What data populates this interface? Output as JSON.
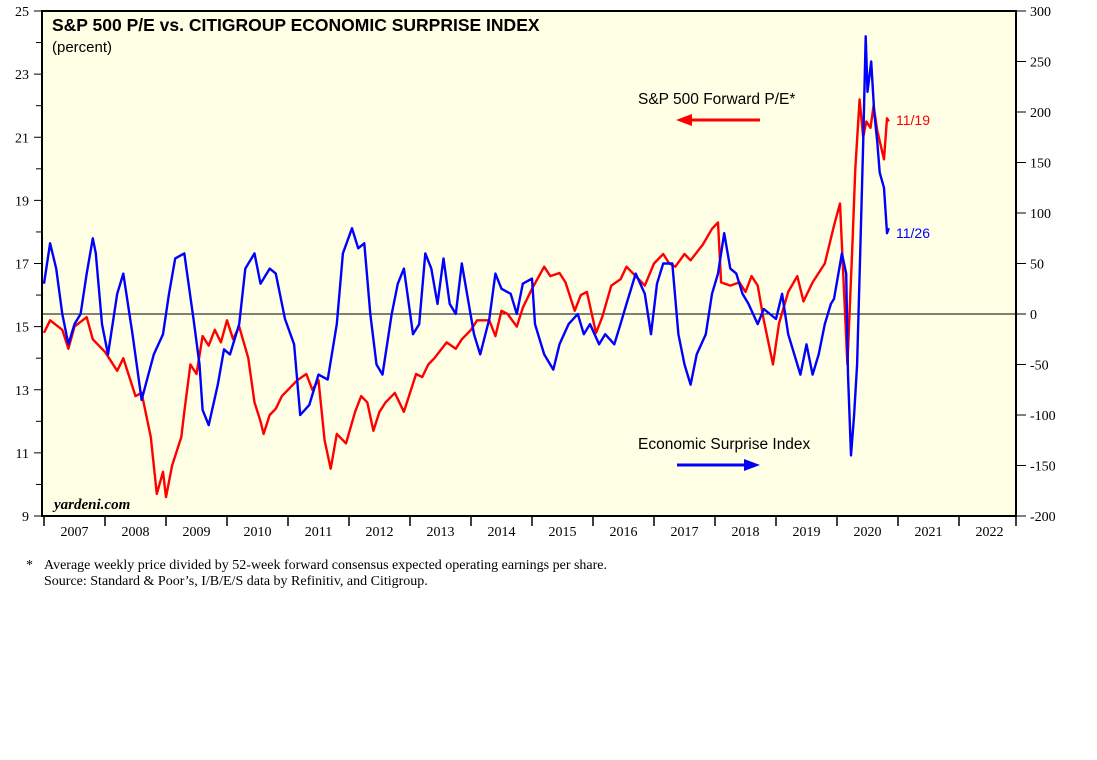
{
  "chart_data": {
    "type": "line",
    "title": "S&P 500 P/E vs. CITIGROUP ECONOMIC SURPRISE INDEX",
    "subtitle": "(percent)",
    "watermark": "yardeni.com",
    "x_tick_labels": [
      "2007",
      "2008",
      "2009",
      "2010",
      "2011",
      "2012",
      "2013",
      "2014",
      "2015",
      "2016",
      "2017",
      "2018",
      "2019",
      "2020",
      "2021",
      "2022"
    ],
    "xlim": [
      2007,
      2023
    ],
    "left_axis": {
      "ylim": [
        9,
        25
      ],
      "ticks": [
        9,
        11,
        13,
        15,
        17,
        19,
        21,
        23,
        25
      ]
    },
    "right_axis": {
      "ylim": [
        -200,
        300
      ],
      "ticks": [
        -200,
        -150,
        -100,
        -50,
        0,
        50,
        100,
        150,
        200,
        250,
        300
      ]
    },
    "reference_line": {
      "axis": "right",
      "value": 0
    },
    "series": [
      {
        "name": "S&P 500 Forward P/E*",
        "axis": "left",
        "color": "#ff0000",
        "end_label": "11/19",
        "x": [
          2007.0,
          2007.1,
          2007.3,
          2007.4,
          2007.5,
          2007.7,
          2007.8,
          2008.0,
          2008.2,
          2008.3,
          2008.5,
          2008.6,
          2008.75,
          2008.85,
          2008.95,
          2009.0,
          2009.1,
          2009.25,
          2009.3,
          2009.4,
          2009.5,
          2009.6,
          2009.7,
          2009.8,
          2009.9,
          2010.0,
          2010.1,
          2010.2,
          2010.35,
          2010.45,
          2010.55,
          2010.6,
          2010.7,
          2010.8,
          2010.9,
          2011.0,
          2011.15,
          2011.3,
          2011.4,
          2011.5,
          2011.6,
          2011.7,
          2011.8,
          2011.95,
          2012.1,
          2012.2,
          2012.3,
          2012.4,
          2012.5,
          2012.6,
          2012.75,
          2012.9,
          2013.0,
          2013.1,
          2013.2,
          2013.3,
          2013.4,
          2013.6,
          2013.75,
          2013.85,
          2014.0,
          2014.1,
          2014.3,
          2014.4,
          2014.5,
          2014.6,
          2014.75,
          2014.85,
          2015.0,
          2015.2,
          2015.3,
          2015.45,
          2015.55,
          2015.7,
          2015.8,
          2015.9,
          2016.05,
          2016.15,
          2016.3,
          2016.45,
          2016.55,
          2016.7,
          2016.85,
          2017.0,
          2017.15,
          2017.25,
          2017.35,
          2017.5,
          2017.6,
          2017.8,
          2017.95,
          2018.05,
          2018.1,
          2018.25,
          2018.4,
          2018.5,
          2018.6,
          2018.7,
          2018.8,
          2018.95,
          2019.05,
          2019.2,
          2019.35,
          2019.45,
          2019.6,
          2019.8,
          2019.95,
          2020.05,
          2020.17,
          2020.25,
          2020.3,
          2020.37,
          2020.43,
          2020.48,
          2020.55,
          2020.6,
          2020.66,
          2020.77,
          2020.82,
          2020.85
        ],
        "y": [
          14.8,
          15.2,
          14.9,
          14.3,
          15.0,
          15.3,
          14.6,
          14.2,
          13.6,
          14.0,
          12.8,
          12.9,
          11.5,
          9.7,
          10.4,
          9.6,
          10.6,
          11.5,
          12.3,
          13.8,
          13.5,
          14.7,
          14.4,
          14.9,
          14.5,
          15.2,
          14.6,
          15.0,
          14.0,
          12.6,
          12.0,
          11.6,
          12.2,
          12.4,
          12.8,
          13.0,
          13.3,
          13.5,
          13.0,
          13.3,
          11.4,
          10.5,
          11.6,
          11.3,
          12.3,
          12.8,
          12.6,
          11.7,
          12.3,
          12.6,
          12.9,
          12.3,
          12.9,
          13.5,
          13.4,
          13.8,
          14.0,
          14.5,
          14.3,
          14.6,
          14.9,
          15.2,
          15.2,
          14.7,
          15.5,
          15.4,
          15.0,
          15.6,
          16.2,
          16.9,
          16.6,
          16.7,
          16.4,
          15.5,
          16.0,
          16.1,
          14.8,
          15.3,
          16.3,
          16.5,
          16.9,
          16.6,
          16.3,
          17.0,
          17.3,
          17.0,
          16.9,
          17.3,
          17.1,
          17.6,
          18.1,
          18.3,
          16.4,
          16.3,
          16.4,
          16.1,
          16.6,
          16.3,
          15.2,
          13.8,
          15.1,
          16.1,
          16.6,
          15.8,
          16.4,
          17.0,
          18.2,
          18.9,
          13.8,
          17.5,
          20.0,
          22.2,
          21.0,
          21.5,
          21.3,
          22.0,
          21.2,
          20.3,
          21.6,
          21.5
        ]
      },
      {
        "name": "Economic Surprise Index",
        "axis": "right",
        "color": "#0000ff",
        "end_label": "11/26",
        "x": [
          2007.0,
          2007.1,
          2007.2,
          2007.3,
          2007.4,
          2007.5,
          2007.6,
          2007.7,
          2007.8,
          2007.85,
          2007.95,
          2008.05,
          2008.2,
          2008.3,
          2008.45,
          2008.6,
          2008.8,
          2008.95,
          2009.05,
          2009.15,
          2009.3,
          2009.45,
          2009.55,
          2009.6,
          2009.7,
          2009.85,
          2009.95,
          2010.05,
          2010.2,
          2010.3,
          2010.45,
          2010.55,
          2010.7,
          2010.8,
          2010.95,
          2011.1,
          2011.2,
          2011.35,
          2011.5,
          2011.65,
          2011.8,
          2011.9,
          2012.05,
          2012.15,
          2012.25,
          2012.35,
          2012.45,
          2012.55,
          2012.7,
          2012.8,
          2012.9,
          2013.05,
          2013.15,
          2013.25,
          2013.35,
          2013.45,
          2013.55,
          2013.65,
          2013.75,
          2013.85,
          2014.05,
          2014.15,
          2014.3,
          2014.4,
          2014.5,
          2014.65,
          2014.75,
          2014.85,
          2015.0,
          2015.05,
          2015.2,
          2015.35,
          2015.45,
          2015.6,
          2015.75,
          2015.85,
          2015.95,
          2016.1,
          2016.2,
          2016.35,
          2016.45,
          2016.55,
          2016.7,
          2016.85,
          2016.95,
          2017.05,
          2017.15,
          2017.3,
          2017.4,
          2017.5,
          2017.6,
          2017.7,
          2017.85,
          2017.95,
          2018.05,
          2018.15,
          2018.25,
          2018.35,
          2018.45,
          2018.55,
          2018.7,
          2018.8,
          2018.9,
          2019.0,
          2019.1,
          2019.2,
          2019.3,
          2019.4,
          2019.5,
          2019.6,
          2019.7,
          2019.8,
          2019.9,
          2019.95,
          2020.08,
          2020.15,
          2020.18,
          2020.23,
          2020.28,
          2020.33,
          2020.38,
          2020.43,
          2020.47,
          2020.5,
          2020.56,
          2020.61,
          2020.66,
          2020.7,
          2020.77,
          2020.82,
          2020.85
        ],
        "y": [
          30,
          70,
          45,
          0,
          -30,
          -10,
          0,
          40,
          75,
          60,
          -10,
          -40,
          20,
          40,
          -20,
          -85,
          -40,
          -20,
          20,
          55,
          60,
          -5,
          -50,
          -95,
          -110,
          -70,
          -35,
          -40,
          -10,
          45,
          60,
          30,
          45,
          40,
          -5,
          -30,
          -100,
          -90,
          -60,
          -65,
          -10,
          60,
          85,
          65,
          70,
          0,
          -50,
          -60,
          0,
          30,
          45,
          -20,
          -10,
          60,
          45,
          10,
          55,
          10,
          0,
          50,
          -20,
          -40,
          -5,
          40,
          25,
          20,
          0,
          30,
          35,
          -10,
          -40,
          -55,
          -30,
          -10,
          0,
          -20,
          -10,
          -30,
          -20,
          -30,
          -10,
          10,
          40,
          20,
          -20,
          30,
          50,
          50,
          -20,
          -50,
          -70,
          -40,
          -20,
          20,
          40,
          80,
          45,
          40,
          20,
          10,
          -10,
          5,
          0,
          -5,
          20,
          -20,
          -40,
          -60,
          -30,
          -60,
          -40,
          -10,
          10,
          15,
          60,
          40,
          -60,
          -140,
          -100,
          -50,
          60,
          170,
          275,
          220,
          250,
          200,
          170,
          140,
          125,
          80,
          85
        ]
      }
    ],
    "annotations": [
      {
        "text": "S&P 500 Forward P/E*",
        "arrow": "left",
        "color": "#ff0000"
      },
      {
        "text": "Economic Surprise Index",
        "arrow": "right",
        "color": "#0000ff"
      }
    ]
  },
  "footnote": {
    "marker": "*",
    "line1": "Average weekly price divided by 52-week forward consensus expected operating earnings per share.",
    "line2": "Source: Standard & Poor’s, I/B/E/S data by Refinitiv, and Citigroup."
  }
}
